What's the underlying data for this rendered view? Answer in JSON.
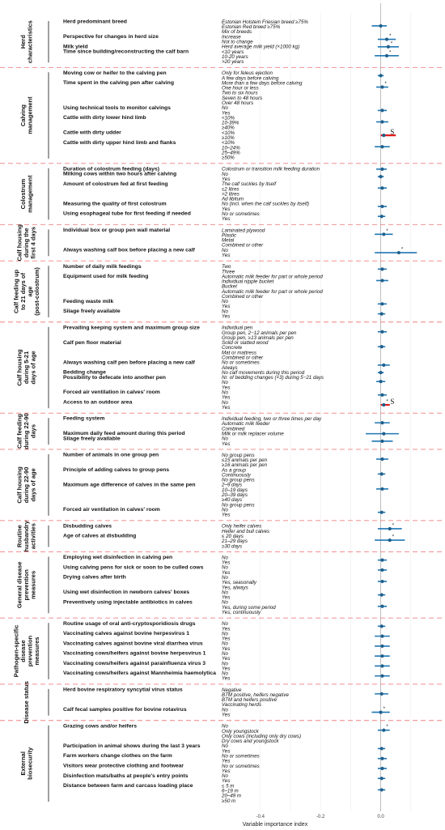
{
  "chart_data": {
    "type": "forest",
    "xlabel": "Variable importance index",
    "xlim": [
      -0.55,
      0.2
    ],
    "xticks": [
      -0.4,
      -0.2,
      0.0
    ],
    "xtick_labels": [
      "-0.4",
      "-0.2",
      "0.0"
    ],
    "reference_line": 0.0,
    "colors": {
      "point": "#1f5f8b",
      "ci": "#1f77b4",
      "highlight": "#e31a1c",
      "separator": "#f08080",
      "zero": "#999999"
    },
    "sections": [
      {
        "label": "Herd characteristics",
        "items": [
          {
            "var": "Herd predominant breed",
            "levels": [
              "Estonian Holstein Friesian breed ≥75%",
              "Estonian Red breed ≥75%",
              "Mix of breeds"
            ],
            "value": 0.0,
            "low": -0.03,
            "high": 0.02
          },
          {
            "var": "Perspective for changes in herd size",
            "levels": [
              "Increase",
              "Not to change"
            ],
            "value": 0.02,
            "low": -0.01,
            "high": 0.05,
            "star": "*"
          },
          {
            "var": "Milk yield",
            "levels": [
              "Herd average milk yield (×1000 kg)"
            ],
            "value": 0.025,
            "low": -0.01,
            "high": 0.06,
            "star": "*"
          },
          {
            "var": "Time since building/reconstructing the calf barn",
            "levels": [
              "<10 years",
              "10-20 years",
              ">20 years"
            ],
            "value": 0.02,
            "low": -0.02,
            "high": 0.06,
            "star": "*"
          }
        ]
      },
      {
        "label": "Calving management",
        "items": [
          {
            "var": "Moving cow or heifer to the calving pen",
            "levels": [
              "Only for feleus ejection",
              "A few days before calving"
            ],
            "value": 0.0,
            "low": -0.01,
            "high": 0.01
          },
          {
            "var": "Time spent in the calving pen after calving",
            "levels": [
              "More than a few days before calving",
              "One hour or less",
              "Two to six hours",
              "Seven to 48 hours",
              "Over 48 hours"
            ],
            "value": 0.005,
            "low": -0.015,
            "high": 0.025,
            "star": "*"
          },
          {
            "var": "Using technical tools to monitor calvings",
            "levels": [
              "No",
              "Yes"
            ],
            "value": 0.005,
            "low": -0.01,
            "high": 0.02
          },
          {
            "var": "Cattle with dirty lower hind limb",
            "levels": [
              "<10%",
              "10-39%",
              "≥40%"
            ],
            "value": 0.005,
            "low": -0.015,
            "high": 0.025
          },
          {
            "var": "Cattle with dirty udder",
            "levels": [
              "<10%",
              "≥10%"
            ],
            "value": 0.01,
            "low": 0.0,
            "high": 0.05,
            "highlight": true,
            "mark": "S"
          },
          {
            "var": "Cattle with dirty upper hind limb and flanks",
            "levels": [
              "<10%",
              "10–24%",
              "25–49%",
              "≥50%"
            ],
            "value": 0.005,
            "low": -0.02,
            "high": 0.03
          }
        ]
      },
      {
        "label": "Colostrum management",
        "items": [
          {
            "var": "Duration of colostrum feeding (days)",
            "levels": [
              "Colostrum or transition milk feeding duration"
            ],
            "value": 0.005,
            "low": -0.015,
            "high": 0.02
          },
          {
            "var": "Milking cows within two hours after calving",
            "levels": [
              "No",
              "Yes"
            ],
            "value": 0.0,
            "low": -0.01,
            "high": 0.01
          },
          {
            "var": "Amount of colostrum fed at first feeding",
            "levels": [
              "The calf suckles by itself",
              "≤2 litres",
              ">2 litres",
              "Ad libitum"
            ],
            "value": 0.005,
            "low": -0.01,
            "high": 0.02
          },
          {
            "var": "Measuring the quality of first colostrum",
            "levels": [
              "No (incl. when the calf suckles by itself)",
              "Yes"
            ],
            "value": 0.005,
            "low": -0.01,
            "high": 0.02
          },
          {
            "var": "Using esophageal tube for first feeding if needed",
            "levels": [
              "No or sometimes",
              "Yes"
            ],
            "value": 0.003,
            "low": -0.01,
            "high": 0.015
          }
        ]
      },
      {
        "label": "Calf housing during the first 4 days",
        "items": [
          {
            "var": "Individual box or group pen wall material",
            "levels": [
              "Laminated plywood",
              "Plastic",
              "Metal",
              "Combined or other"
            ],
            "value": 0.01,
            "low": -0.02,
            "high": 0.04,
            "star": "*"
          },
          {
            "var": "Always washing calf box before placing a new calf",
            "levels": [
              "No",
              "Yes"
            ],
            "value": 0.06,
            "low": -0.02,
            "high": 0.12,
            "star": "*"
          }
        ]
      },
      {
        "label": "Calf feeding up to 21 days of age (post-colostrum)",
        "items": [
          {
            "var": "Number of daily milk feedings",
            "levels": [
              "Two",
              "Three"
            ],
            "value": 0.005,
            "low": -0.01,
            "high": 0.02
          },
          {
            "var": "Equipment used for milk feeding",
            "levels": [
              "Automatic milk feeder for part or whole period",
              "Individual nipple bucket",
              "Bucket",
              "Automatic milk feeder for part or whole period",
              "Combined or other"
            ],
            "value": 0.005,
            "low": -0.015,
            "high": 0.025
          },
          {
            "var": "Feeding waste milk",
            "levels": [
              "No",
              "Yes"
            ],
            "value": 0.005,
            "low": -0.01,
            "high": 0.02
          },
          {
            "var": "Silage freely available",
            "levels": [
              "No",
              "Yes"
            ],
            "value": 0.003,
            "low": -0.01,
            "high": 0.015
          }
        ]
      },
      {
        "label": "Calf housing during 5-21 days of age",
        "items": [
          {
            "var": "Prevailing keeping system and maximum group size",
            "levels": [
              "Individual pen",
              "Group pen, 2−12 animals per pen",
              "Group pen, ≥13 animals per pen"
            ],
            "value": 0.005,
            "low": -0.01,
            "high": 0.02
          },
          {
            "var": "Calf pen floor material",
            "levels": [
              "Solid or slatted wood",
              "Concrete",
              "Mat or mattress",
              "Combined or other"
            ],
            "value": 0.003,
            "low": -0.01,
            "high": 0.015
          },
          {
            "var": "Always washing calf pen before placing a new calf",
            "levels": [
              "No or sometimes",
              "Always"
            ],
            "value": 0.01,
            "low": -0.01,
            "high": 0.03
          },
          {
            "var": "Bedding change",
            "levels": [
              "No calf movements during this period"
            ],
            "value": 0.0,
            "low": -0.01,
            "high": 0.01
          },
          {
            "var": "Possibility to defecate into another pen",
            "levels": [
              "Nr. of bedding changes (×3) during 5−21 days",
              "No",
              "Yes"
            ],
            "value": 0.0,
            "low": -0.015,
            "high": 0.015
          },
          {
            "var": "Forced air ventilation in calves' room",
            "levels": [
              "No",
              "Yes"
            ],
            "value": 0.005,
            "low": -0.01,
            "high": 0.02
          },
          {
            "var": "Access to an outdoor area",
            "levels": [
              "No",
              "Yes"
            ],
            "value": 0.01,
            "low": 0.0,
            "high": 0.03,
            "highlight": true,
            "mark": "S",
            "star": "*"
          }
        ]
      },
      {
        "label": "Calf feeding during 22-90 days",
        "items": [
          {
            "var": "Feeding system",
            "levels": [
              "Individual feeding, two or three times per day",
              "Automatic milk feeder",
              "Combined"
            ],
            "value": 0.005,
            "low": -0.02,
            "high": 0.03
          },
          {
            "var": "Maximum daily feed amount during this period",
            "levels": [
              "Milk or milk replacer volume"
            ],
            "value": 0.01,
            "low": -0.05,
            "high": 0.06
          },
          {
            "var": "Silage freely available",
            "levels": [
              "No",
              "Yes"
            ],
            "value": 0.005,
            "low": -0.03,
            "high": 0.04
          }
        ]
      },
      {
        "label": "Calf housing during 22-90 days of age",
        "items": [
          {
            "var": "Number of animals in one group pen",
            "levels": [
              "No group pens",
              "≤15 animals per pen",
              "≥16 animals per pen"
            ],
            "value": 0.005,
            "low": -0.015,
            "high": 0.025
          },
          {
            "var": "Principle of adding calves to group pens",
            "levels": [
              "As a group",
              "Continuously",
              "No group pens"
            ],
            "value": 0.003,
            "low": -0.01,
            "high": 0.015
          },
          {
            "var": "Maximum age difference of calves in the same pen",
            "levels": [
              "2–9 days",
              "10–19 days",
              "20–39 days",
              "≥40 days",
              "No group pens"
            ],
            "value": 0.005,
            "low": -0.015,
            "high": 0.025
          },
          {
            "var": "Forced air ventilation in calves' room",
            "levels": [
              "No",
              "Yes"
            ],
            "value": 0.003,
            "low": -0.01,
            "high": 0.015
          }
        ]
      },
      {
        "label": "Routine husbandry activities",
        "items": [
          {
            "var": "Disbudding calves",
            "levels": [
              "Only heifer calves",
              "Heifer and bull calves"
            ],
            "value": 0.03,
            "low": -0.01,
            "high": 0.07,
            "star": "*"
          },
          {
            "var": "Age of calves at disbudding",
            "levels": [
              "≤ 20 days",
              "21–29 days",
              "≥30 days"
            ],
            "value": 0.03,
            "low": -0.02,
            "high": 0.08,
            "star": "*"
          }
        ]
      },
      {
        "label": "General disease prevention measures",
        "items": [
          {
            "var": "Employing wet disinfection in calving pen",
            "levels": [
              "No",
              "Yes"
            ],
            "value": 0.005,
            "low": -0.01,
            "high": 0.02
          },
          {
            "var": "Using calving pens for sick or soon to be culled cows",
            "levels": [
              "No",
              "Yes"
            ],
            "value": 0.005,
            "low": -0.01,
            "high": 0.02
          },
          {
            "var": "Drying calves after birth",
            "levels": [
              "No",
              "Yes, seasonally",
              "Yes, always"
            ],
            "value": 0.005,
            "low": -0.01,
            "high": 0.02
          },
          {
            "var": "Using wet disinfection in newborn calves' boxes",
            "levels": [
              "No",
              "Yes"
            ],
            "value": 0.003,
            "low": -0.01,
            "high": 0.015
          },
          {
            "var": "Preventively using injectable antibiotics in calves",
            "levels": [
              "No",
              "Yes, during some period",
              "Yes, continuously"
            ],
            "value": 0.005,
            "low": -0.01,
            "high": 0.02
          }
        ]
      },
      {
        "label": "Pathogen-specific disease prevention measures",
        "items": [
          {
            "var": "Routine usage of oral anti-cryptosporidiosis drugs",
            "levels": [
              "No",
              "Yes"
            ],
            "value": 0.003,
            "low": -0.01,
            "high": 0.015
          },
          {
            "var": "Vaccinating calves against bovine herpesvirus 1",
            "levels": [
              "No",
              "Yes"
            ],
            "value": 0.005,
            "low": -0.02,
            "high": 0.03
          },
          {
            "var": "Vaccinating calves against bovine viral diarrhea virus",
            "levels": [
              "No",
              "Yes"
            ],
            "value": 0.005,
            "low": -0.02,
            "high": 0.03
          },
          {
            "var": "Vaccinating cows/heifers against bovine herpesvirus 1",
            "levels": [
              "No",
              "Yes"
            ],
            "value": 0.005,
            "low": -0.02,
            "high": 0.03
          },
          {
            "var": "Vaccinating cows/heifers against parainfluenza virus 3",
            "levels": [
              "No",
              "Yes"
            ],
            "value": 0.005,
            "low": -0.02,
            "high": 0.03
          },
          {
            "var": "Vaccinating cows/heifers against Mannheimia haemolytica",
            "levels": [
              "No",
              "Yes"
            ],
            "value": 0.005,
            "low": -0.02,
            "high": 0.03
          }
        ]
      },
      {
        "label": "Disease status",
        "items": [
          {
            "var": "Herd bovine respiratory syncytial virus status",
            "levels": [
              "Negative",
              "BTM positive, heifers negative",
              "BTM and heifers positive",
              "Vaccinating herds"
            ],
            "value": 0.003,
            "low": -0.02,
            "high": 0.025
          },
          {
            "var": "Calf fecal samples positive for bovine rotavirus",
            "levels": [
              "No",
              "Yes"
            ],
            "value": 0.0,
            "low": -0.03,
            "high": 0.03,
            "star": "*"
          }
        ]
      },
      {
        "label": "External biosecurity",
        "items": [
          {
            "var": "Grazing cows and/or heifers",
            "levels": [
              "No",
              "Only youngstock",
              "Only cows (including only dry cows)",
              "Dry cows and youngstock"
            ],
            "value": 0.01,
            "low": -0.01,
            "high": 0.03,
            "star": "*"
          },
          {
            "var": "Participation in animal shows during the last 3 years",
            "levels": [
              "No",
              "Yes"
            ],
            "value": 0.003,
            "low": -0.01,
            "high": 0.015
          },
          {
            "var": "Farm workers change clothes on the farm",
            "levels": [
              "No or sometimes",
              "Yes"
            ],
            "value": 0.005,
            "low": -0.01,
            "high": 0.02
          },
          {
            "var": "Visitors wear protective clothing and footwear",
            "levels": [
              "No or sometimes",
              "Yes"
            ],
            "value": 0.005,
            "low": -0.01,
            "high": 0.02
          },
          {
            "var": "Disinfection mats/baths at people's entry points",
            "levels": [
              "No",
              "Yes"
            ],
            "value": 0.003,
            "low": -0.01,
            "high": 0.015
          },
          {
            "var": "Distance between farm and carcass loading place",
            "levels": [
              "≤ 5 m",
              "6–19 m",
              "20–49 m",
              "≥50 m"
            ],
            "value": 0.003,
            "low": -0.01,
            "high": 0.015
          }
        ]
      }
    ]
  }
}
